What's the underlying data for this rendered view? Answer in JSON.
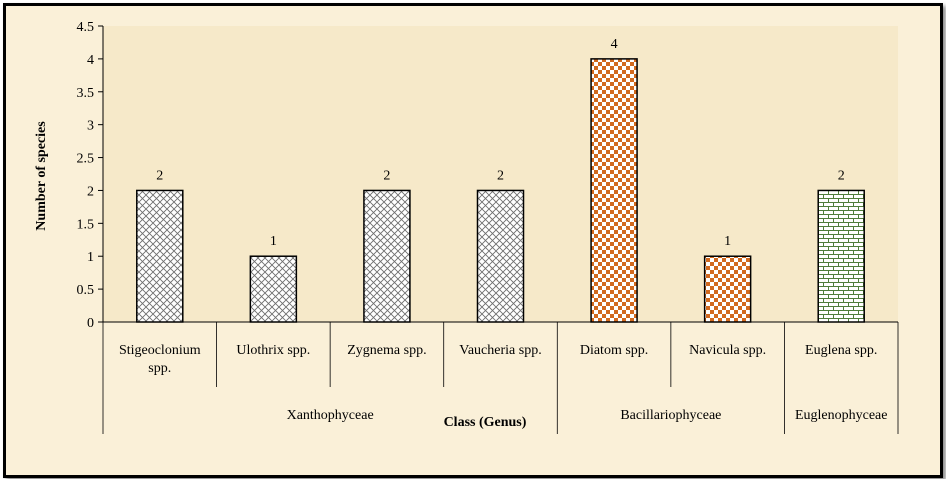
{
  "chart_data": {
    "type": "bar",
    "categories": [
      "Stigeoclonium spp.",
      "Ulothrix spp.",
      "Zygnema spp.",
      "Vaucheria spp.",
      "Diatom spp.",
      "Navicula spp.",
      "Euglena spp."
    ],
    "values": [
      2,
      1,
      2,
      2,
      4,
      1,
      2
    ],
    "data_labels": [
      "2",
      "1",
      "2",
      "2",
      "4",
      "1",
      "2"
    ],
    "groups": [
      {
        "label": "Xanthophyceae",
        "members": [
          "Stigeoclonium spp.",
          "Ulothrix spp.",
          "Zygnema spp.",
          "Vaucheria spp."
        ]
      },
      {
        "label": "Bacillariophyceae",
        "members": [
          "Diatom spp.",
          "Navicula spp."
        ]
      },
      {
        "label": "Euglenophyceae",
        "members": [
          "Euglena spp."
        ]
      }
    ],
    "bar_patterns": [
      "crosshatch-gray",
      "crosshatch-gray",
      "crosshatch-gray",
      "crosshatch-gray",
      "checker-orange",
      "checker-orange",
      "brick-green"
    ],
    "xlabel": "Class (Genus)",
    "ylabel": "Number of species",
    "ylim": [
      0,
      4.5
    ],
    "yticks": [
      "0",
      "0.5",
      "1",
      "1.5",
      "2",
      "2.5",
      "3",
      "3.5",
      "4",
      "4.5"
    ],
    "grid": false,
    "legend": "none",
    "colors": {
      "plot_background": "#f6e9c9",
      "frame_background": "#faf0d8",
      "checker_orange": "#d2691e",
      "brick_green": "#4f7d3a"
    }
  }
}
